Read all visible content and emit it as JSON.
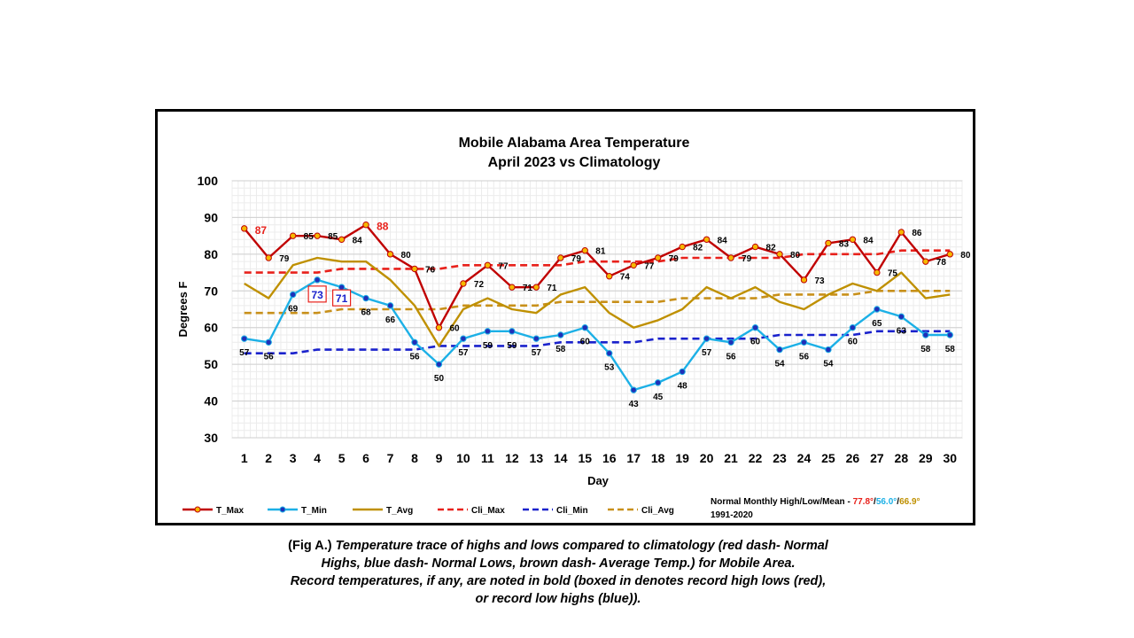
{
  "chart_data": {
    "type": "line",
    "title": "Mobile Alabama Area Temperature",
    "subtitle": "April 2023 vs Climatology",
    "xlabel": "Day",
    "ylabel": "Degrees F",
    "ylim": [
      30,
      100
    ],
    "yticks": [
      30,
      40,
      50,
      60,
      70,
      80,
      90,
      100
    ],
    "x": [
      1,
      2,
      3,
      4,
      5,
      6,
      7,
      8,
      9,
      10,
      11,
      12,
      13,
      14,
      15,
      16,
      17,
      18,
      19,
      20,
      21,
      22,
      23,
      24,
      25,
      26,
      27,
      28,
      29,
      30
    ],
    "grid": true,
    "legend_position": "bottom-left",
    "series": [
      {
        "name": "T_Max",
        "color": "#C00000",
        "style": "solid",
        "marker": "circle",
        "marker_fill": "#F5B800",
        "values": [
          87,
          79,
          85,
          85,
          84,
          88,
          80,
          76,
          60,
          72,
          77,
          71,
          71,
          79,
          81,
          74,
          77,
          79,
          82,
          84,
          79,
          82,
          80,
          73,
          83,
          84,
          75,
          86,
          78,
          80
        ]
      },
      {
        "name": "T_Min",
        "color": "#1CB0E6",
        "style": "solid",
        "marker": "circle",
        "marker_fill": "#1F2FB8",
        "values": [
          57,
          56,
          69,
          73,
          71,
          68,
          66,
          56,
          50,
          57,
          59,
          59,
          57,
          58,
          60,
          53,
          43,
          45,
          48,
          57,
          56,
          60,
          54,
          56,
          54,
          60,
          65,
          63,
          58,
          58
        ]
      },
      {
        "name": "T_Avg",
        "color": "#BF9000",
        "style": "solid",
        "marker": "none",
        "values": [
          72,
          68,
          77,
          79,
          78,
          78,
          73,
          66,
          55,
          65,
          68,
          65,
          64,
          69,
          71,
          64,
          60,
          62,
          65,
          71,
          68,
          71,
          67,
          65,
          69,
          72,
          70,
          75,
          68,
          69
        ]
      },
      {
        "name": "Cli_Max",
        "color": "#E8211B",
        "style": "dashed",
        "marker": "none",
        "values": [
          75,
          75,
          75,
          75,
          76,
          76,
          76,
          76,
          76,
          77,
          77,
          77,
          77,
          77,
          78,
          78,
          78,
          78,
          79,
          79,
          79,
          79,
          79,
          80,
          80,
          80,
          80,
          81,
          81,
          81
        ]
      },
      {
        "name": "Cli_Min",
        "color": "#1A22CC",
        "style": "dashed",
        "marker": "none",
        "values": [
          53,
          53,
          53,
          54,
          54,
          54,
          54,
          54,
          55,
          55,
          55,
          55,
          55,
          56,
          56,
          56,
          56,
          57,
          57,
          57,
          57,
          57,
          58,
          58,
          58,
          58,
          59,
          59,
          59,
          59
        ]
      },
      {
        "name": "Cli_Avg",
        "color": "#C8901A",
        "style": "dashed",
        "marker": "none",
        "values": [
          64,
          64,
          64,
          64,
          65,
          65,
          65,
          65,
          65,
          66,
          66,
          66,
          66,
          67,
          67,
          67,
          67,
          67,
          68,
          68,
          68,
          68,
          69,
          69,
          69,
          69,
          70,
          70,
          70,
          70
        ]
      }
    ],
    "data_labels": {
      "T_Max": [
        "87",
        "79",
        "85",
        "85",
        "84",
        "88",
        "80",
        "76",
        "60",
        "72",
        "77",
        "71",
        "71",
        "79",
        "81",
        "74",
        "77",
        "79",
        "82",
        "84",
        "79",
        "82",
        "80",
        "73",
        "83",
        "84",
        "75",
        "86",
        "78",
        "80"
      ],
      "T_Min": [
        "57",
        "56",
        "69",
        "73",
        "71",
        "68",
        "66",
        "56",
        "50",
        "57",
        "59",
        "59",
        "57",
        "58",
        "60",
        "53",
        "43",
        "45",
        "48",
        "57",
        "56",
        "60",
        "54",
        "56",
        "54",
        "60",
        "65",
        "63",
        "58",
        "58"
      ]
    },
    "record_highs": [
      {
        "day": 1,
        "label": "87",
        "color": "#E8211B"
      },
      {
        "day": 6,
        "label": "88",
        "color": "#E8211B"
      }
    ],
    "record_high_lows": [
      {
        "day": 4,
        "label": "73",
        "box_color": "#E8211B",
        "text_color": "#1A22CC"
      },
      {
        "day": 5,
        "label": "71",
        "box_color": "#E8211B",
        "text_color": "#1A22CC"
      }
    ],
    "normals_note": {
      "prefix": "Normal Monthly High/Low/Mean - ",
      "high": "77.8°",
      "high_color": "#E8211B",
      "sep1": "/",
      "low": "56.0°",
      "low_color": "#1CB0E6",
      "sep2": "/",
      "mean": "66.9°",
      "mean_color": "#BF9000",
      "period": "1991-2020"
    }
  },
  "caption": {
    "prefix": "(Fig A.) ",
    "line1": "Temperature trace of highs and lows compared to climatology (red dash- Normal",
    "line2": "Highs, blue dash- Normal Lows, brown dash- Average Temp.) for Mobile Area.",
    "line3": "Record temperatures, if any, are noted in bold (boxed in denotes record high lows (red),",
    "line4": "or record low highs (blue))."
  }
}
